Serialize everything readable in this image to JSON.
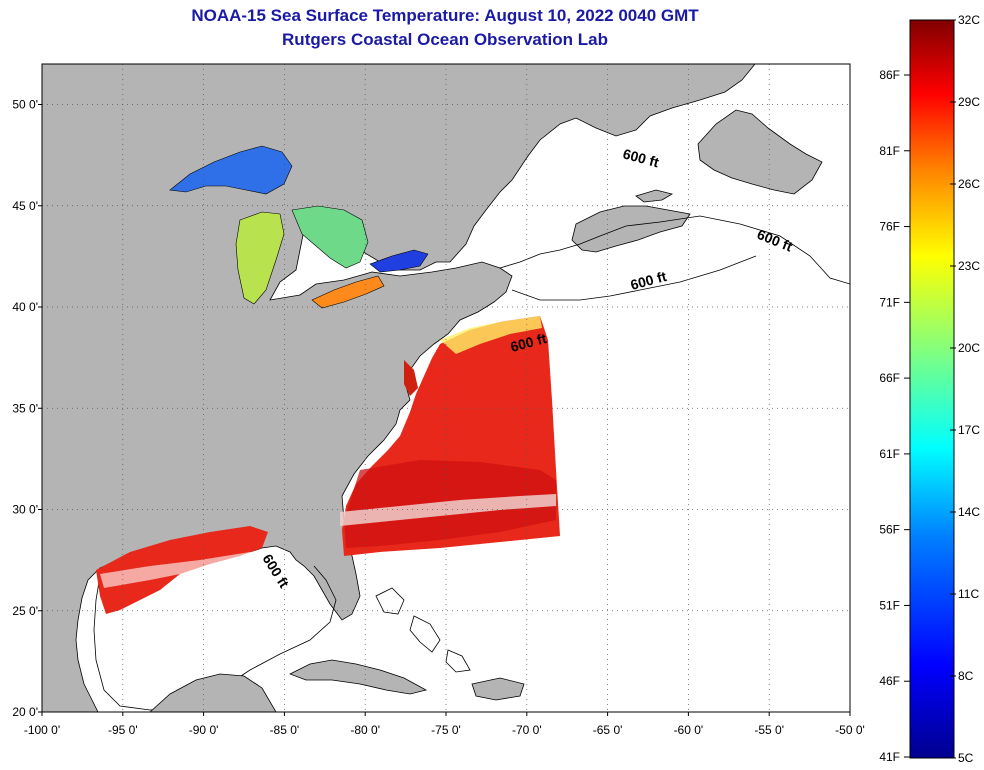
{
  "title": {
    "line1": "NOAA-15 Sea Surface Temperature:  August 10, 2022 0040 GMT",
    "line2": "Rutgers Coastal Ocean Observation Lab"
  },
  "map": {
    "lon_range": [
      -100,
      -50
    ],
    "lat_range": [
      20,
      52
    ],
    "lon_ticks": [
      "-100 0'",
      "-95 0'",
      "-90 0'",
      "-85 0'",
      "-80 0'",
      "-75 0'",
      "-70 0'",
      "-65 0'",
      "-60 0'",
      "-55 0'",
      "-50 0'"
    ],
    "lat_ticks": [
      "20 0'",
      "25 0'",
      "30 0'",
      "35 0'",
      "40 0'",
      "45 0'",
      "50 0'"
    ],
    "contour_label": "600 ft",
    "land_color": "#b4b4b4",
    "grid_style": "dotted"
  },
  "colorbar": {
    "celsius_labels": [
      "32C",
      "29C",
      "26C",
      "23C",
      "20C",
      "17C",
      "14C",
      "11C",
      "8C",
      "5C"
    ],
    "fahrenheit_labels": [
      "86F",
      "81F",
      "76F",
      "71F",
      "66F",
      "61F",
      "56F",
      "51F",
      "46F",
      "41F"
    ],
    "range_c": [
      5,
      32
    ],
    "colors": [
      "#00008f",
      "#0000ff",
      "#0080ff",
      "#00ffff",
      "#80ff80",
      "#ffff00",
      "#ff8000",
      "#ff0000",
      "#800000"
    ]
  }
}
